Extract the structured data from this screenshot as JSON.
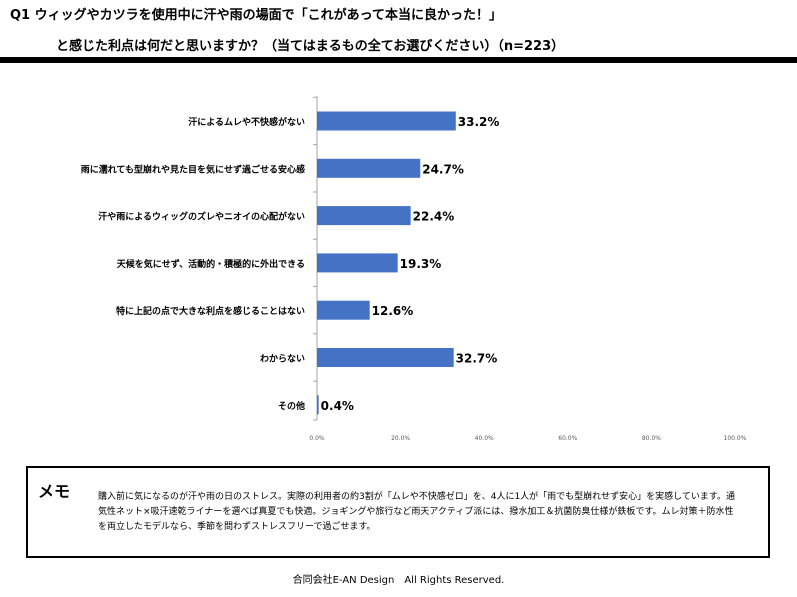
{
  "header": {
    "title_line1": "Q1 ウィッグやカツラを使用中に汗や雨の場面で「これがあって本当に良かった！」",
    "title_line2": "と感じた利点は何だと思いますか？（当てはまるもの全てお選びください）（n=223）"
  },
  "chart_data": {
    "type": "bar",
    "orientation": "horizontal",
    "categories": [
      "汗によるムレや不快感がない",
      "雨に濡れても型崩れや見た目を気にせず過ごせる安心感",
      "汗や雨によるウィッグのズレやニオイの心配がない",
      "天候を気にせず、活動的・積極的に外出できる",
      "特に上記の点で大きな利点を感じることはない",
      "わからない",
      "その他"
    ],
    "values": [
      33.2,
      24.7,
      22.4,
      19.3,
      12.6,
      32.7,
      0.4
    ],
    "data_labels": [
      "33.2%",
      "24.7%",
      "22.4%",
      "19.3%",
      "12.6%",
      "32.7%",
      "0.4%"
    ],
    "xlim": [
      0,
      100
    ],
    "x_ticks": [
      "0.0%",
      "20.0%",
      "40.0%",
      "60.0%",
      "80.0%",
      "100.0%"
    ],
    "bar_color": "#4472C4",
    "grid": false
  },
  "memo": {
    "title": "メモ",
    "text": "購入前に気になるのが汗や雨の日のストレス。実際の利用者の約3割が「ムレや不快感ゼロ」を、4人に1人が「雨でも型崩れせず安心」を実感しています。通気性ネット×吸汗速乾ライナーを選べば真夏でも快適。ジョギングや旅行など雨天アクティブ派には、撥水加工＆抗菌防臭仕様が鉄板です。ムレ対策＋防水性を両立したモデルなら、季節を問わずストレスフリーで過ごせます。"
  },
  "footer": {
    "copyright": "合同会社E-AN Design　All Rights Reserved."
  }
}
